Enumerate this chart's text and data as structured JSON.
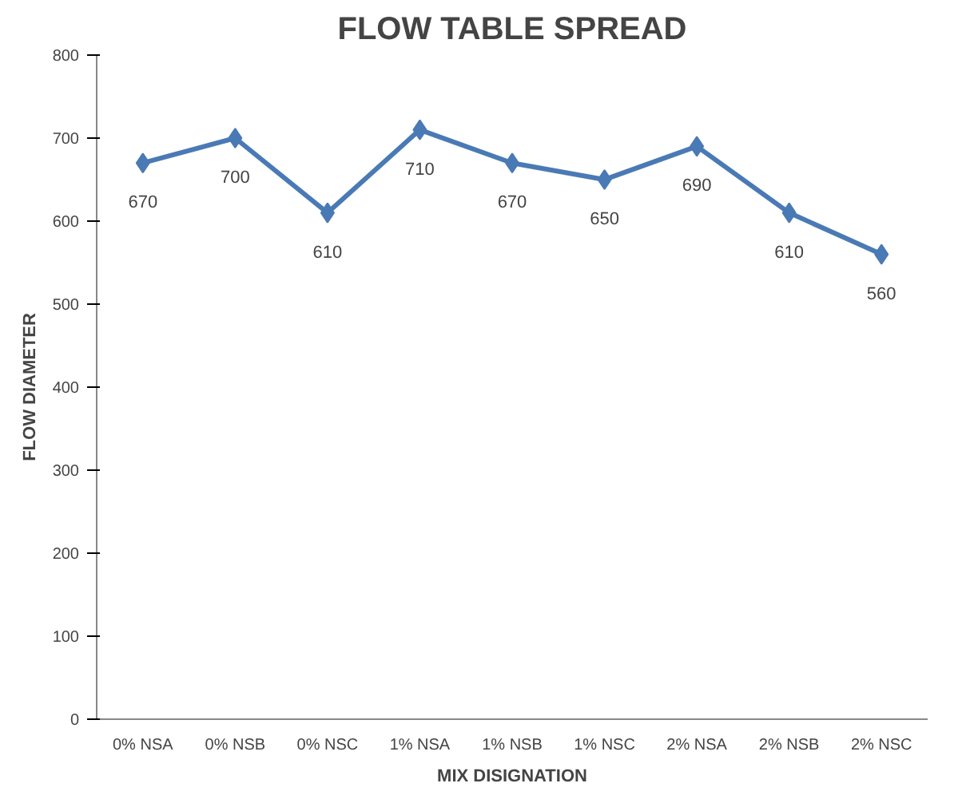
{
  "chart_data": {
    "type": "line",
    "title": "FLOW TABLE SPREAD",
    "xlabel": "MIX DISIGNATION",
    "ylabel": "FLOW DIAMETER",
    "categories": [
      "0% NSA",
      "0% NSB",
      "0% NSC",
      "1% NSA",
      "1% NSB",
      "1% NSC",
      "2% NSA",
      "2% NSB",
      "2% NSC"
    ],
    "series": [
      {
        "color": "#4a7ab5",
        "values": [
          670,
          700,
          610,
          710,
          670,
          650,
          690,
          610,
          560
        ]
      }
    ],
    "ylim": [
      0,
      800
    ],
    "yticks": [
      0,
      100,
      200,
      300,
      400,
      500,
      600,
      700,
      800
    ],
    "marker": "diamond",
    "data_labels": true
  }
}
